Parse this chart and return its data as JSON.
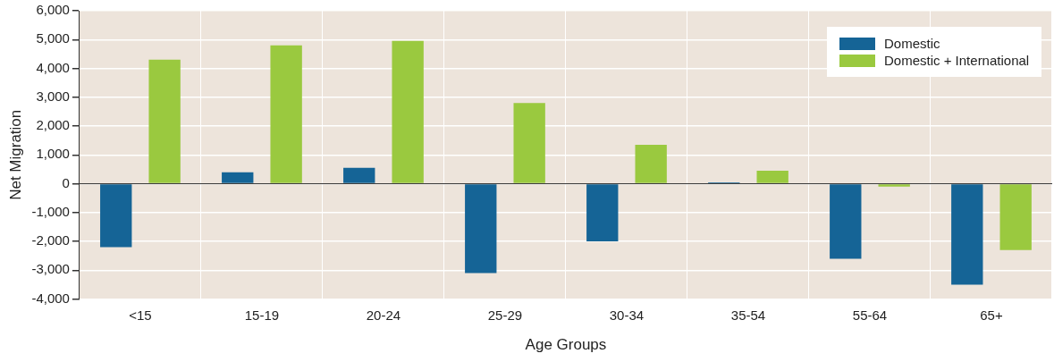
{
  "chart_data": {
    "type": "bar",
    "xlabel": "Age Groups",
    "ylabel": "Net Migration",
    "categories": [
      "<15",
      "15-19",
      "20-24",
      "25-29",
      "30-34",
      "35-54",
      "55-64",
      "65+"
    ],
    "series": [
      {
        "name": "Domestic",
        "color": "#156496",
        "values": [
          -2200,
          400,
          550,
          -3100,
          -2000,
          50,
          -2600,
          -3500
        ]
      },
      {
        "name": "Domestic + International",
        "color": "#9ac93f",
        "values": [
          4300,
          4800,
          4950,
          2800,
          1350,
          450,
          -100,
          -2300
        ]
      }
    ],
    "ylim": [
      -4000,
      6000
    ],
    "yticks": [
      {
        "value": -4000,
        "label": "-4,000"
      },
      {
        "value": -3000,
        "label": "-3,000"
      },
      {
        "value": -2000,
        "label": "-2,000"
      },
      {
        "value": -1000,
        "label": "-1,000"
      },
      0,
      {
        "value": 1000,
        "label": "1,000"
      },
      {
        "value": 2000,
        "label": "2,000"
      },
      {
        "value": 3000,
        "label": "3,000"
      },
      {
        "value": 4000,
        "label": "4,000"
      },
      {
        "value": 5000,
        "label": "5,000"
      },
      {
        "value": 6000,
        "label": "6,000"
      }
    ],
    "grid": true,
    "legend": "top right"
  }
}
